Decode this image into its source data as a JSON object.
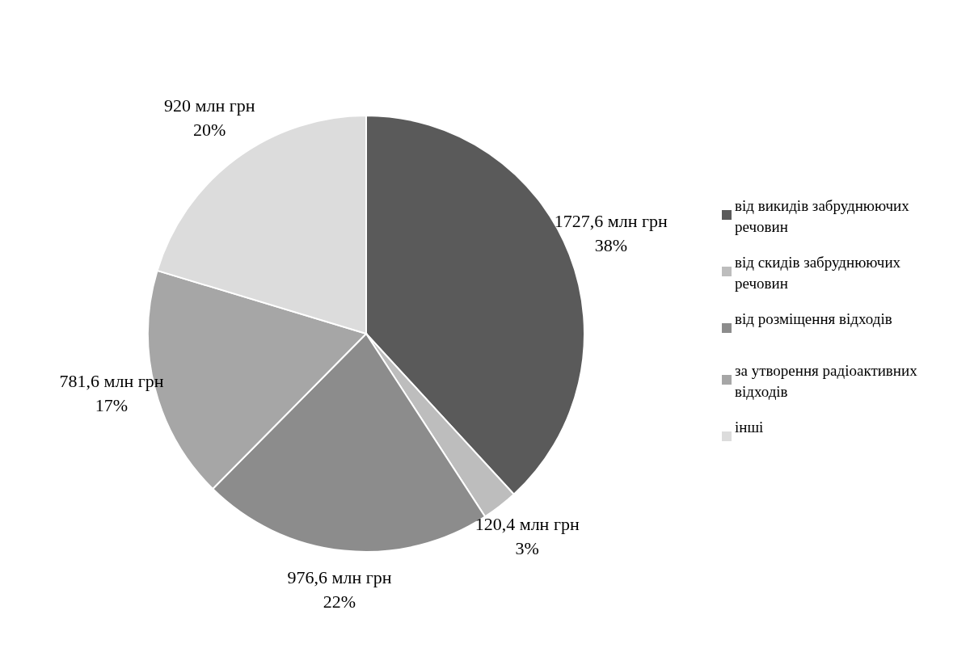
{
  "chart_data": {
    "type": "pie",
    "categories": [
      "від викидів забруднюючих речовин",
      "від скидів забруднюючих речовин",
      "від розміщення відходів",
      "за утворення радіоактивних відходів",
      "інші"
    ],
    "values": [
      1727.6,
      120.4,
      976.6,
      781.6,
      920
    ],
    "value_labels": [
      "1727,6 млн грн\n38%",
      "120,4 млн грн\n3%",
      "976,6 млн грн\n22%",
      "781,6 млн грн\n17%",
      "920 млн грн\n20%"
    ],
    "colors": [
      "#5a5a5a",
      "#bdbdbd",
      "#8c8c8c",
      "#a6a6a6",
      "#dcdcdc"
    ],
    "legend": "right"
  }
}
